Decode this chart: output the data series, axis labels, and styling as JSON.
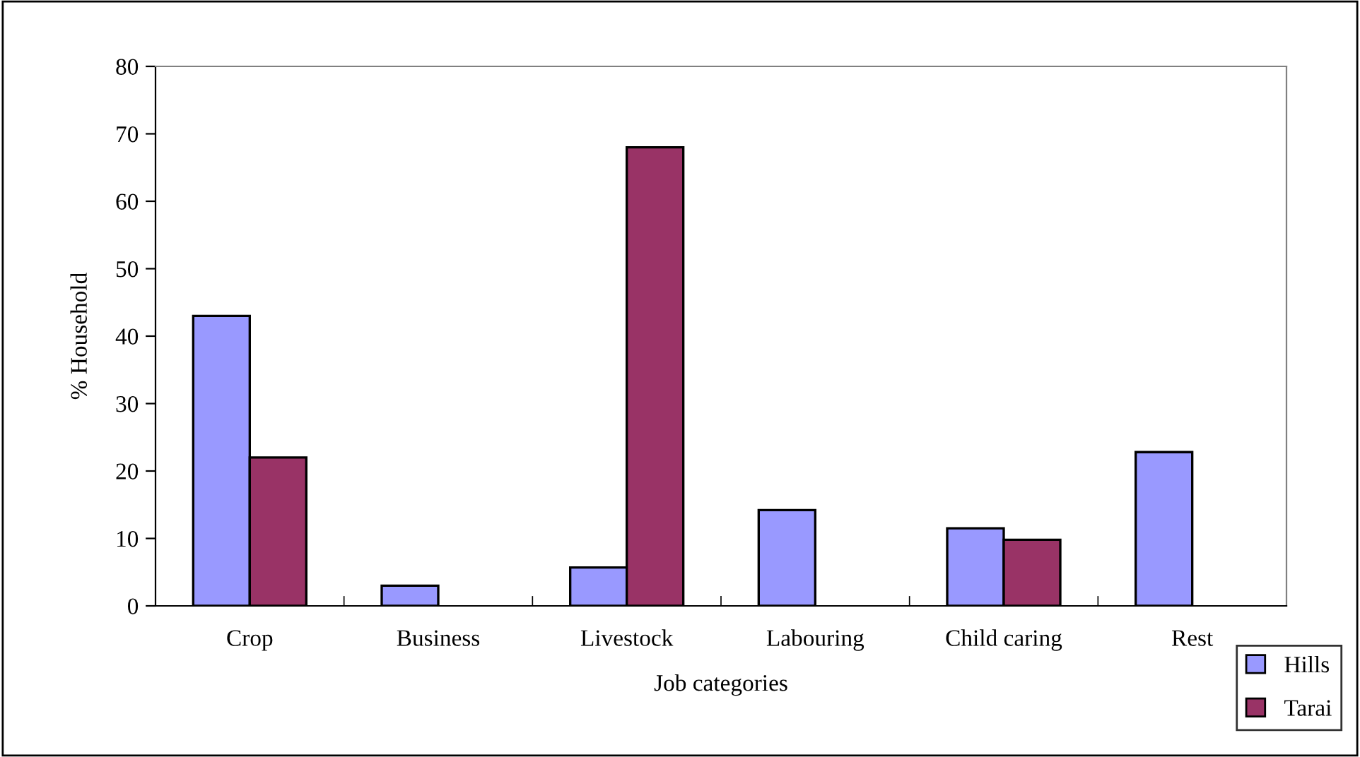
{
  "chart_data": {
    "type": "bar",
    "xlabel": "Job categories",
    "ylabel": "% Household",
    "categories": [
      "Crop",
      "Business",
      "Livestock",
      "Labouring",
      "Child caring",
      "Rest"
    ],
    "series": [
      {
        "name": "Hills",
        "color": "#9999ff",
        "values": [
          43,
          3,
          5.7,
          14.2,
          11.5,
          22.8
        ]
      },
      {
        "name": "Tarai",
        "color": "#993366",
        "values": [
          22,
          null,
          68,
          null,
          9.8,
          null
        ]
      }
    ],
    "ylim": [
      0,
      80
    ],
    "yticks": [
      0,
      10,
      20,
      30,
      40,
      50,
      60,
      70,
      80
    ],
    "grid": false,
    "legend": "bottom right"
  }
}
